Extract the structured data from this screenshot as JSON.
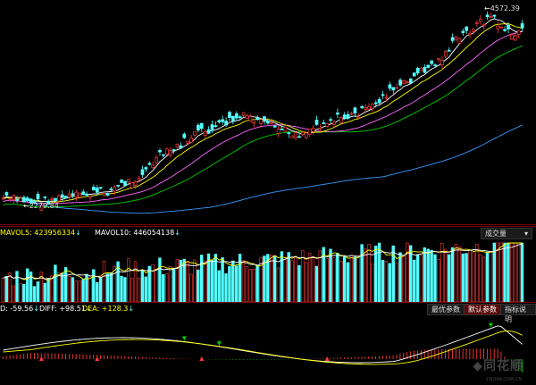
{
  "price_panel": {
    "high_label": "4572.39",
    "low_label": "2279.84",
    "colors": {
      "up": "#ff3a3a",
      "down": "#54ffff",
      "ma5": "#ffffff",
      "ma10": "#ffff00",
      "ma20": "#ff66ff",
      "ma30": "#00cc00",
      "ma60": "#3399ff"
    }
  },
  "volume_panel": {
    "mavol5_label": "MAVOL5: 423956334",
    "mavol10_label": "MAVOL10: 446054138",
    "dropdown_label": "成交量",
    "mavol5_color": "#ffff00",
    "mavol10_color": "#ffffff"
  },
  "macd_panel": {
    "macd_label": "D: -59.56",
    "diff_label": "DIFF: +98.51",
    "dea_label": "DEA: +128.3",
    "buttons": [
      "最优参数",
      "默认参数",
      "指标说明"
    ],
    "active_button": 1
  },
  "watermark": {
    "text": "同花顺",
    "url": "10JQKA.COM.CN"
  }
}
